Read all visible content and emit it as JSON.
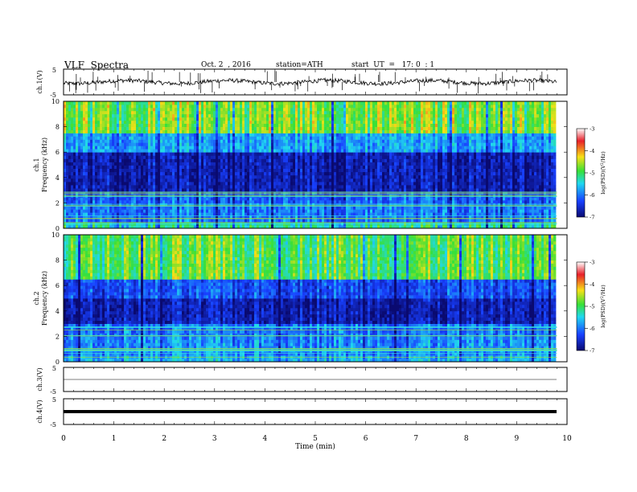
{
  "header": {
    "title": "VLF  Spectra",
    "date": "Oct. 2  , 2016",
    "station": "station=ATH",
    "start": "start  UT  =   17: 0  : 1"
  },
  "chart_data": [
    {
      "type": "line",
      "panel": "ch1-waveform",
      "ylabel": "ch.1(V)",
      "ylim": [
        -5,
        5
      ],
      "yticks": [
        "5",
        "-5"
      ],
      "trace_level": 0.0,
      "grid": false
    },
    {
      "type": "heatmap",
      "panel": "ch1-spectrogram",
      "ylabel": "ch.1\nFrequency  (kHz)",
      "ylim": [
        0,
        10
      ],
      "yticks": [
        "0",
        "2",
        "4",
        "6",
        "8",
        "10"
      ],
      "xlim": [
        0,
        10
      ],
      "data_end_min": 9.8,
      "colorbar": {
        "label": "log(PSD)(V²/Hz)",
        "range": [
          -7,
          -3
        ],
        "ticks": [
          "-3",
          "-4",
          "-5",
          "-6",
          "-7"
        ],
        "colormap": [
          "#ffffff",
          "#e8202a",
          "#f7e017",
          "#38e038",
          "#20d8f0",
          "#1840ff",
          "#0a0a70"
        ]
      },
      "bands": [
        {
          "from": 0.0,
          "to": 0.5,
          "level": -5.4
        },
        {
          "from": 0.5,
          "to": 2.0,
          "level": -6.1
        },
        {
          "from": 2.0,
          "to": 2.9,
          "level": -6.2
        },
        {
          "from": 2.9,
          "to": 6.0,
          "level": -6.7
        },
        {
          "from": 6.0,
          "to": 7.5,
          "level": -5.9
        },
        {
          "from": 7.5,
          "to": 10.0,
          "level": -4.8
        }
      ]
    },
    {
      "type": "heatmap",
      "panel": "ch2-spectrogram",
      "ylabel": "ch.2\nFrequency  (kHz)",
      "ylim": [
        0,
        10
      ],
      "yticks": [
        "0",
        "2",
        "4",
        "6",
        "8",
        "10"
      ],
      "xlim": [
        0,
        10
      ],
      "data_end_min": 9.8,
      "colorbar": {
        "label": "log(PSD)(V²/Hz)",
        "range": [
          -7,
          -3
        ],
        "ticks": [
          "-3",
          "-4",
          "-5",
          "-6",
          "-7"
        ],
        "colormap": [
          "#ffffff",
          "#e8202a",
          "#f7e017",
          "#38e038",
          "#20d8f0",
          "#1840ff",
          "#0a0a70"
        ]
      },
      "bands": [
        {
          "from": 0.0,
          "to": 0.5,
          "level": -5.8
        },
        {
          "from": 0.5,
          "to": 2.0,
          "level": -6.0
        },
        {
          "from": 2.0,
          "to": 3.0,
          "level": -6.1
        },
        {
          "from": 3.0,
          "to": 5.0,
          "level": -6.7
        },
        {
          "from": 5.0,
          "to": 6.5,
          "level": -6.3
        },
        {
          "from": 6.5,
          "to": 10.0,
          "level": -5.0
        }
      ]
    },
    {
      "type": "line",
      "panel": "ch3-waveform",
      "ylabel": "ch.3(V)",
      "ylim": [
        -5,
        5
      ],
      "yticks": [
        "5",
        "-5"
      ],
      "trace_level": 0.0,
      "grid": false
    },
    {
      "type": "line",
      "panel": "ch4-waveform",
      "ylabel": "ch.4(V)",
      "ylim": [
        -5,
        5
      ],
      "yticks": [
        "5",
        "-5"
      ],
      "trace_level": 0.0,
      "grid": false
    }
  ],
  "x_axis": {
    "label": "Time  (min)",
    "ticks": [
      "0",
      "1",
      "2",
      "3",
      "4",
      "5",
      "6",
      "7",
      "8",
      "9",
      "10"
    ]
  }
}
